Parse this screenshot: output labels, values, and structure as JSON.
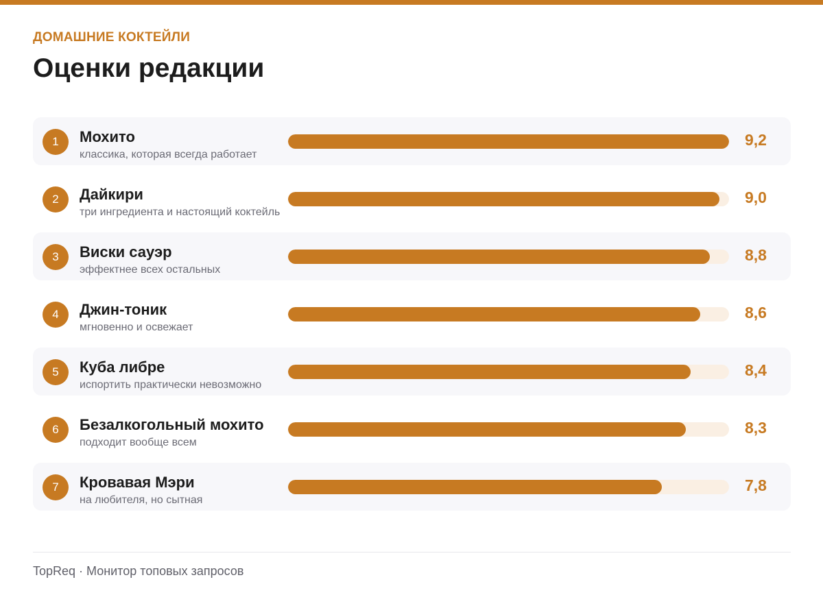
{
  "header": {
    "kicker": "ДОМАШНИЕ КОКТЕЙЛИ",
    "title": "Оценки редакции"
  },
  "colors": {
    "accent": "#c77a22",
    "track": "#faefe3",
    "row_shade": "#f7f7fa"
  },
  "chart_data": {
    "type": "bar",
    "orientation": "horizontal",
    "ylim": [
      0,
      9.2
    ],
    "items": [
      {
        "rank": "1",
        "name": "Мохито",
        "note": "классика, которая всегда работает",
        "value": 9.2,
        "label": "9,2"
      },
      {
        "rank": "2",
        "name": "Дайкири",
        "note": "три ингредиента и настоящий коктейль",
        "value": 9.0,
        "label": "9,0"
      },
      {
        "rank": "3",
        "name": "Виски сауэр",
        "note": "эффектнее всех остальных",
        "value": 8.8,
        "label": "8,8"
      },
      {
        "rank": "4",
        "name": "Джин-тоник",
        "note": "мгновенно и освежает",
        "value": 8.6,
        "label": "8,6"
      },
      {
        "rank": "5",
        "name": "Куба либре",
        "note": "испортить практически невозможно",
        "value": 8.4,
        "label": "8,4"
      },
      {
        "rank": "6",
        "name": "Безалкогольный мохито",
        "note": "подходит вообще всем",
        "value": 8.3,
        "label": "8,3"
      },
      {
        "rank": "7",
        "name": "Кровавая Мэри",
        "note": "на любителя, но сытная",
        "value": 7.8,
        "label": "7,8"
      }
    ]
  },
  "footer": {
    "text": "TopReq · Монитор топовых запросов"
  }
}
